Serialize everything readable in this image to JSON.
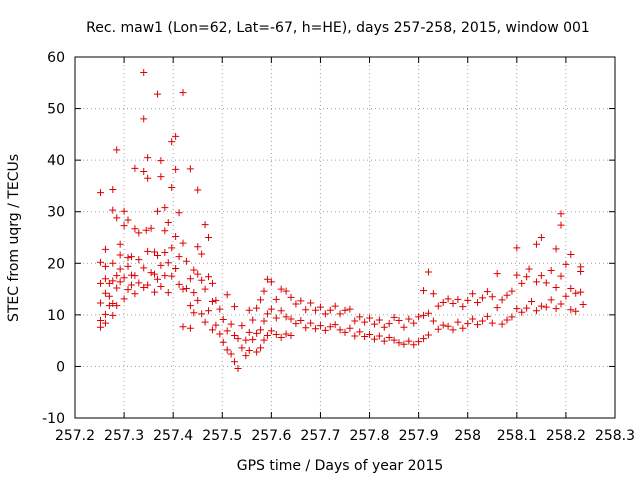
{
  "chart_data": {
    "type": "scatter",
    "title": "Rec. maw1 (Lon=62, Lat=-67, h=HE), days 257-258, 2015, window 001",
    "xlabel": "GPS time / Days of year 2015",
    "ylabel": "STEC from uqrg / TECUs",
    "xlim": [
      257.2,
      258.3
    ],
    "ylim": [
      -10,
      60
    ],
    "xticks": [
      "257.2",
      "257.3",
      "257.4",
      "257.5",
      "257.6",
      "257.7",
      "257.8",
      "257.9",
      "258",
      "258.1",
      "258.2",
      "258.3"
    ],
    "yticks": [
      "-10",
      "0",
      "10",
      "20",
      "30",
      "40",
      "50",
      "60"
    ],
    "grid": true,
    "marker": "+",
    "color": "#dd0000",
    "points": [
      [
        257.252,
        33.7
      ],
      [
        257.252,
        20.2
      ],
      [
        257.252,
        16.1
      ],
      [
        257.252,
        12.3
      ],
      [
        257.252,
        8.9
      ],
      [
        257.252,
        7.6
      ],
      [
        257.262,
        22.7
      ],
      [
        257.262,
        19.4
      ],
      [
        257.262,
        17.0
      ],
      [
        257.262,
        14.2
      ],
      [
        257.262,
        10.1
      ],
      [
        257.262,
        8.4
      ],
      [
        257.27,
        16.1
      ],
      [
        257.27,
        13.6
      ],
      [
        257.27,
        11.8
      ],
      [
        257.277,
        34.3
      ],
      [
        257.277,
        30.3
      ],
      [
        257.277,
        20.0
      ],
      [
        257.277,
        16.6
      ],
      [
        257.277,
        12.2
      ],
      [
        257.277,
        9.9
      ],
      [
        257.285,
        42.0
      ],
      [
        257.285,
        28.8
      ],
      [
        257.285,
        17.6
      ],
      [
        257.285,
        15.2
      ],
      [
        257.285,
        11.8
      ],
      [
        257.292,
        23.7
      ],
      [
        257.292,
        21.6
      ],
      [
        257.292,
        18.9
      ],
      [
        257.292,
        16.4
      ],
      [
        257.3,
        30.1
      ],
      [
        257.3,
        27.3
      ],
      [
        257.3,
        17.2
      ],
      [
        257.3,
        13.1
      ],
      [
        257.308,
        28.4
      ],
      [
        257.308,
        21.1
      ],
      [
        257.308,
        19.4
      ],
      [
        257.308,
        14.9
      ],
      [
        257.315,
        21.3
      ],
      [
        257.315,
        17.7
      ],
      [
        257.315,
        15.8
      ],
      [
        257.322,
        38.4
      ],
      [
        257.322,
        26.7
      ],
      [
        257.322,
        17.6
      ],
      [
        257.322,
        14.1
      ],
      [
        257.33,
        25.9
      ],
      [
        257.33,
        20.7
      ],
      [
        257.33,
        16.2
      ],
      [
        257.34,
        48.0
      ],
      [
        257.34,
        37.8
      ],
      [
        257.34,
        19.1
      ],
      [
        257.34,
        15.3
      ],
      [
        257.34,
        57.0
      ],
      [
        257.345,
        26.4
      ],
      [
        257.348,
        40.5
      ],
      [
        257.348,
        36.5
      ],
      [
        257.348,
        22.3
      ],
      [
        257.348,
        15.8
      ],
      [
        257.355,
        26.8
      ],
      [
        257.355,
        18.2
      ],
      [
        257.362,
        22.2
      ],
      [
        257.362,
        17.9
      ],
      [
        257.362,
        14.4
      ],
      [
        257.368,
        52.8
      ],
      [
        257.368,
        30.1
      ],
      [
        257.368,
        21.5
      ],
      [
        257.368,
        16.9
      ],
      [
        257.375,
        39.9
      ],
      [
        257.375,
        36.8
      ],
      [
        257.375,
        19.6
      ],
      [
        257.375,
        15.5
      ],
      [
        257.383,
        30.8
      ],
      [
        257.383,
        26.3
      ],
      [
        257.383,
        22.1
      ],
      [
        257.383,
        17.6
      ],
      [
        257.39,
        27.9
      ],
      [
        257.39,
        20.1
      ],
      [
        257.39,
        14.3
      ],
      [
        257.397,
        43.6
      ],
      [
        257.397,
        34.7
      ],
      [
        257.397,
        23.0
      ],
      [
        257.397,
        17.5
      ],
      [
        257.405,
        44.6
      ],
      [
        257.405,
        38.2
      ],
      [
        257.405,
        25.2
      ],
      [
        257.405,
        19.0
      ],
      [
        257.412,
        29.8
      ],
      [
        257.412,
        21.3
      ],
      [
        257.412,
        15.9
      ],
      [
        257.42,
        53.1
      ],
      [
        257.42,
        23.9
      ],
      [
        257.42,
        15.0
      ],
      [
        257.42,
        7.7
      ],
      [
        257.427,
        20.4
      ],
      [
        257.427,
        15.1
      ],
      [
        257.435,
        38.3
      ],
      [
        257.435,
        17.0
      ],
      [
        257.435,
        11.8
      ],
      [
        257.435,
        7.4
      ],
      [
        257.442,
        18.7
      ],
      [
        257.442,
        14.3
      ],
      [
        257.442,
        10.4
      ],
      [
        257.45,
        34.2
      ],
      [
        257.45,
        23.2
      ],
      [
        257.45,
        17.9
      ],
      [
        257.45,
        12.8
      ],
      [
        257.458,
        21.8
      ],
      [
        257.458,
        16.7
      ],
      [
        257.458,
        10.2
      ],
      [
        257.465,
        27.5
      ],
      [
        257.465,
        15.0
      ],
      [
        257.465,
        8.6
      ],
      [
        257.472,
        25.0
      ],
      [
        257.472,
        17.4
      ],
      [
        257.472,
        10.8
      ],
      [
        257.48,
        16.1
      ],
      [
        257.48,
        12.6
      ],
      [
        257.48,
        7.1
      ],
      [
        257.487,
        12.8
      ],
      [
        257.487,
        8.0
      ],
      [
        257.495,
        11.1
      ],
      [
        257.495,
        6.3
      ],
      [
        257.502,
        9.1
      ],
      [
        257.502,
        4.7
      ],
      [
        257.51,
        13.9
      ],
      [
        257.51,
        6.9
      ],
      [
        257.51,
        3.2
      ],
      [
        257.518,
        8.2
      ],
      [
        257.518,
        2.4
      ],
      [
        257.525,
        11.6
      ],
      [
        257.525,
        6.0
      ],
      [
        257.525,
        0.9
      ],
      [
        257.532,
        5.4
      ],
      [
        257.532,
        -0.4
      ],
      [
        257.54,
        7.9
      ],
      [
        257.54,
        3.6
      ],
      [
        257.548,
        5.1
      ],
      [
        257.548,
        2.1
      ],
      [
        257.555,
        10.9
      ],
      [
        257.555,
        6.6
      ],
      [
        257.555,
        3.1
      ],
      [
        257.562,
        9.0
      ],
      [
        257.562,
        5.2
      ],
      [
        257.57,
        11.3
      ],
      [
        257.57,
        6.4
      ],
      [
        257.57,
        2.8
      ],
      [
        257.578,
        12.9
      ],
      [
        257.578,
        7.1
      ],
      [
        257.578,
        3.6
      ],
      [
        257.585,
        14.6
      ],
      [
        257.585,
        8.8
      ],
      [
        257.585,
        5.1
      ],
      [
        257.592,
        16.9
      ],
      [
        257.592,
        10.2
      ],
      [
        257.592,
        6.0
      ],
      [
        257.6,
        16.4
      ],
      [
        257.6,
        11.1
      ],
      [
        257.6,
        6.9
      ],
      [
        257.61,
        13.0
      ],
      [
        257.61,
        9.4
      ],
      [
        257.61,
        6.2
      ],
      [
        257.62,
        15.0
      ],
      [
        257.62,
        10.8
      ],
      [
        257.62,
        5.6
      ],
      [
        257.63,
        14.6
      ],
      [
        257.63,
        9.6
      ],
      [
        257.63,
        6.3
      ],
      [
        257.64,
        13.4
      ],
      [
        257.64,
        9.2
      ],
      [
        257.64,
        6.0
      ],
      [
        257.65,
        12.1
      ],
      [
        257.65,
        8.3
      ],
      [
        257.66,
        12.7
      ],
      [
        257.66,
        8.9
      ],
      [
        257.67,
        11.0
      ],
      [
        257.67,
        7.5
      ],
      [
        257.68,
        12.3
      ],
      [
        257.68,
        8.4
      ],
      [
        257.69,
        10.9
      ],
      [
        257.69,
        7.3
      ],
      [
        257.7,
        11.5
      ],
      [
        257.7,
        7.9
      ],
      [
        257.71,
        10.2
      ],
      [
        257.71,
        7.0
      ],
      [
        257.72,
        10.9
      ],
      [
        257.72,
        7.7
      ],
      [
        257.73,
        11.7
      ],
      [
        257.73,
        8.1
      ],
      [
        257.74,
        10.2
      ],
      [
        257.74,
        7.1
      ],
      [
        257.75,
        10.9
      ],
      [
        257.75,
        6.6
      ],
      [
        257.76,
        11.1
      ],
      [
        257.76,
        7.4
      ],
      [
        257.77,
        8.8
      ],
      [
        257.77,
        5.9
      ],
      [
        257.78,
        9.6
      ],
      [
        257.78,
        6.7
      ],
      [
        257.79,
        8.6
      ],
      [
        257.79,
        5.8
      ],
      [
        257.8,
        9.4
      ],
      [
        257.8,
        6.2
      ],
      [
        257.81,
        8.2
      ],
      [
        257.81,
        5.3
      ],
      [
        257.82,
        9.0
      ],
      [
        257.82,
        5.9
      ],
      [
        257.83,
        7.6
      ],
      [
        257.83,
        4.9
      ],
      [
        257.84,
        8.3
      ],
      [
        257.84,
        5.6
      ],
      [
        257.85,
        9.5
      ],
      [
        257.85,
        5.1
      ],
      [
        257.86,
        8.9
      ],
      [
        257.86,
        4.6
      ],
      [
        257.87,
        7.6
      ],
      [
        257.87,
        4.3
      ],
      [
        257.88,
        9.2
      ],
      [
        257.88,
        4.9
      ],
      [
        257.89,
        8.4
      ],
      [
        257.89,
        4.2
      ],
      [
        257.9,
        9.6
      ],
      [
        257.9,
        4.8
      ],
      [
        257.91,
        14.7
      ],
      [
        257.91,
        9.9
      ],
      [
        257.91,
        5.4
      ],
      [
        257.92,
        18.3
      ],
      [
        257.92,
        10.3
      ],
      [
        257.92,
        6.1
      ],
      [
        257.93,
        14.1
      ],
      [
        257.93,
        8.8
      ],
      [
        257.94,
        11.7
      ],
      [
        257.94,
        7.2
      ],
      [
        257.95,
        12.4
      ],
      [
        257.95,
        8.0
      ],
      [
        257.96,
        13.1
      ],
      [
        257.96,
        7.8
      ],
      [
        257.97,
        12.2
      ],
      [
        257.97,
        7.1
      ],
      [
        257.98,
        13.0
      ],
      [
        257.98,
        8.6
      ],
      [
        257.99,
        11.6
      ],
      [
        257.99,
        7.4
      ],
      [
        258.0,
        12.8
      ],
      [
        258.0,
        8.3
      ],
      [
        258.01,
        14.1
      ],
      [
        258.01,
        9.2
      ],
      [
        258.02,
        12.4
      ],
      [
        258.02,
        8.1
      ],
      [
        258.03,
        13.3
      ],
      [
        258.03,
        8.8
      ],
      [
        258.04,
        14.5
      ],
      [
        258.04,
        9.7
      ],
      [
        258.05,
        13.5
      ],
      [
        258.05,
        8.4
      ],
      [
        258.06,
        18.0
      ],
      [
        258.06,
        11.4
      ],
      [
        258.07,
        12.9
      ],
      [
        258.07,
        8.2
      ],
      [
        258.08,
        13.8
      ],
      [
        258.08,
        9.0
      ],
      [
        258.09,
        14.6
      ],
      [
        258.09,
        9.6
      ],
      [
        258.1,
        23.0
      ],
      [
        258.1,
        17.7
      ],
      [
        258.1,
        11.2
      ],
      [
        258.11,
        16.1
      ],
      [
        258.11,
        10.5
      ],
      [
        258.12,
        17.4
      ],
      [
        258.12,
        11.3
      ],
      [
        258.125,
        18.9
      ],
      [
        258.13,
        12.6
      ],
      [
        258.14,
        23.7
      ],
      [
        258.14,
        16.4
      ],
      [
        258.14,
        10.8
      ],
      [
        258.15,
        25.0
      ],
      [
        258.15,
        17.6
      ],
      [
        258.15,
        11.7
      ],
      [
        258.16,
        16.2
      ],
      [
        258.16,
        11.5
      ],
      [
        258.17,
        18.6
      ],
      [
        258.17,
        12.9
      ],
      [
        258.18,
        22.8
      ],
      [
        258.18,
        15.3
      ],
      [
        258.18,
        11.2
      ],
      [
        258.19,
        29.6
      ],
      [
        258.19,
        27.4
      ],
      [
        258.19,
        17.5
      ],
      [
        258.19,
        12.1
      ],
      [
        258.2,
        19.8
      ],
      [
        258.2,
        13.6
      ],
      [
        258.21,
        21.7
      ],
      [
        258.21,
        15.1
      ],
      [
        258.21,
        11.0
      ],
      [
        258.22,
        14.2
      ],
      [
        258.22,
        10.7
      ],
      [
        258.23,
        18.4
      ],
      [
        258.23,
        19.3
      ],
      [
        258.23,
        14.4
      ],
      [
        258.235,
        12.0
      ]
    ]
  }
}
